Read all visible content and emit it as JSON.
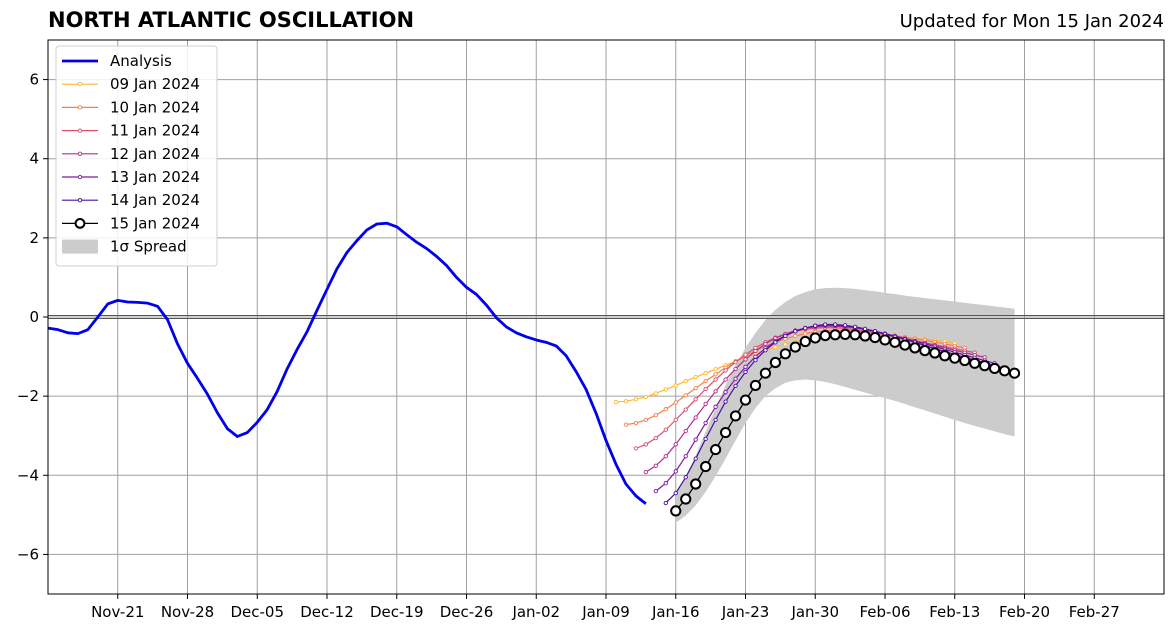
{
  "title": "NORTH ATLANTIC OSCILLATION",
  "updated": "Updated for Mon 15 Jan 2024",
  "chart_data": {
    "type": "line",
    "title": "NORTH ATLANTIC OSCILLATION",
    "x_start_date": "2023-11-14",
    "xlim": [
      "2023-11-14",
      "2024-03-05"
    ],
    "ylim": [
      -7,
      7
    ],
    "yticks": [
      -6,
      -4,
      -2,
      0,
      2,
      4,
      6
    ],
    "ytick_labels": [
      "−6",
      "−4",
      "−2",
      "0",
      "2",
      "4",
      "6"
    ],
    "xticks": [
      "2023-11-21",
      "2023-11-28",
      "2023-12-05",
      "2023-12-12",
      "2023-12-19",
      "2023-12-26",
      "2024-01-02",
      "2024-01-09",
      "2024-01-16",
      "2024-01-23",
      "2024-01-30",
      "2024-02-06",
      "2024-02-13",
      "2024-02-20",
      "2024-02-27"
    ],
    "xtick_labels": [
      "Nov-21",
      "Nov-28",
      "Dec-05",
      "Dec-12",
      "Dec-19",
      "Dec-26",
      "Jan-02",
      "Jan-09",
      "Jan-16",
      "Jan-23",
      "Jan-30",
      "Feb-06",
      "Feb-13",
      "Feb-20",
      "Feb-27"
    ],
    "grid": true,
    "legend_position": "top-left",
    "analysis": {
      "name": "Analysis",
      "color": "#0000ee",
      "start": "2023-11-14",
      "values": [
        -0.28,
        -0.32,
        -0.4,
        -0.42,
        -0.32,
        0.0,
        0.33,
        0.42,
        0.38,
        0.37,
        0.35,
        0.27,
        -0.07,
        -0.68,
        -1.17,
        -1.55,
        -1.95,
        -2.42,
        -2.82,
        -3.02,
        -2.92,
        -2.66,
        -2.34,
        -1.88,
        -1.31,
        -0.82,
        -0.37,
        0.17,
        0.7,
        1.22,
        1.63,
        1.93,
        2.2,
        2.35,
        2.37,
        2.28,
        2.08,
        1.89,
        1.73,
        1.53,
        1.3,
        1.0,
        0.75,
        0.57,
        0.3,
        -0.02,
        -0.25,
        -0.4,
        -0.5,
        -0.58,
        -0.64,
        -0.73,
        -0.98,
        -1.38,
        -1.83,
        -2.43,
        -3.12,
        -3.72,
        -4.22,
        -4.52,
        -4.72
      ]
    },
    "forecasts": [
      {
        "name": "09 Jan 2024",
        "color": "#ffb630",
        "start": "2024-01-10",
        "values": [
          -2.15,
          -2.13,
          -2.08,
          -2.02,
          -1.93,
          -1.83,
          -1.73,
          -1.62,
          -1.52,
          -1.42,
          -1.32,
          -1.22,
          -1.12,
          -1.02,
          -0.93,
          -0.84,
          -0.76,
          -0.69,
          -0.63,
          -0.58,
          -0.54,
          -0.51,
          -0.49,
          -0.47,
          -0.46,
          -0.46,
          -0.47,
          -0.48,
          -0.5,
          -0.52,
          -0.54,
          -0.56,
          -0.59,
          -0.62,
          -0.66
        ]
      },
      {
        "name": "10 Jan 2024",
        "color": "#f5804a",
        "start": "2024-01-11",
        "values": [
          -2.72,
          -2.68,
          -2.6,
          -2.48,
          -2.33,
          -2.16,
          -1.98,
          -1.8,
          -1.62,
          -1.45,
          -1.28,
          -1.12,
          -0.98,
          -0.85,
          -0.74,
          -0.64,
          -0.55,
          -0.48,
          -0.42,
          -0.38,
          -0.35,
          -0.34,
          -0.34,
          -0.35,
          -0.37,
          -0.4,
          -0.43,
          -0.47,
          -0.51,
          -0.55,
          -0.59,
          -0.63,
          -0.68,
          -0.73,
          -0.78
        ]
      },
      {
        "name": "11 Jan 2024",
        "color": "#dd4f6c",
        "start": "2024-01-12",
        "values": [
          -3.32,
          -3.22,
          -3.06,
          -2.85,
          -2.6,
          -2.34,
          -2.08,
          -1.82,
          -1.58,
          -1.35,
          -1.14,
          -0.95,
          -0.78,
          -0.64,
          -0.52,
          -0.43,
          -0.36,
          -0.31,
          -0.28,
          -0.27,
          -0.27,
          -0.29,
          -0.32,
          -0.36,
          -0.4,
          -0.45,
          -0.5,
          -0.55,
          -0.6,
          -0.65,
          -0.7,
          -0.75,
          -0.8,
          -0.85,
          -0.9
        ]
      },
      {
        "name": "12 Jan 2024",
        "color": "#b42d8d",
        "start": "2024-01-13",
        "values": [
          -3.92,
          -3.76,
          -3.52,
          -3.22,
          -2.88,
          -2.54,
          -2.2,
          -1.88,
          -1.58,
          -1.31,
          -1.07,
          -0.86,
          -0.68,
          -0.54,
          -0.43,
          -0.34,
          -0.28,
          -0.25,
          -0.23,
          -0.23,
          -0.25,
          -0.28,
          -0.32,
          -0.37,
          -0.42,
          -0.48,
          -0.54,
          -0.6,
          -0.66,
          -0.72,
          -0.78,
          -0.84,
          -0.9,
          -0.96,
          -1.02
        ]
      },
      {
        "name": "13 Jan 2024",
        "color": "#8217a6",
        "start": "2024-01-14",
        "values": [
          -4.4,
          -4.2,
          -3.9,
          -3.52,
          -3.1,
          -2.68,
          -2.27,
          -1.9,
          -1.56,
          -1.26,
          -1.0,
          -0.79,
          -0.61,
          -0.47,
          -0.36,
          -0.28,
          -0.23,
          -0.21,
          -0.21,
          -0.23,
          -0.26,
          -0.31,
          -0.36,
          -0.42,
          -0.48,
          -0.55,
          -0.61,
          -0.68,
          -0.75,
          -0.82,
          -0.89,
          -0.96,
          -1.03,
          -1.1,
          -1.17
        ]
      },
      {
        "name": "14 Jan 2024",
        "color": "#4a0f9c",
        "start": "2024-01-15",
        "values": [
          -4.7,
          -4.45,
          -4.05,
          -3.58,
          -3.08,
          -2.6,
          -2.14,
          -1.74,
          -1.39,
          -1.09,
          -0.84,
          -0.64,
          -0.48,
          -0.36,
          -0.28,
          -0.22,
          -0.19,
          -0.19,
          -0.21,
          -0.25,
          -0.3,
          -0.36,
          -0.43,
          -0.5,
          -0.57,
          -0.64,
          -0.72,
          -0.8,
          -0.87,
          -0.95,
          -1.02,
          -1.09,
          -1.16,
          -1.23,
          -1.3
        ]
      },
      {
        "name": "15 Jan 2024",
        "color": "#000000",
        "start": "2024-01-16",
        "values": [
          -4.9,
          -4.6,
          -4.22,
          -3.78,
          -3.35,
          -2.92,
          -2.5,
          -2.1,
          -1.73,
          -1.42,
          -1.15,
          -0.93,
          -0.76,
          -0.62,
          -0.53,
          -0.47,
          -0.45,
          -0.44,
          -0.45,
          -0.48,
          -0.52,
          -0.58,
          -0.64,
          -0.71,
          -0.78,
          -0.85,
          -0.91,
          -0.98,
          -1.04,
          -1.1,
          -1.17,
          -1.23,
          -1.3,
          -1.36,
          -1.42
        ]
      }
    ],
    "spread": {
      "name": "1σ Spread",
      "color": "#cccccc",
      "start": "2024-01-16",
      "upper": [
        -4.45,
        -4.05,
        -3.5,
        -2.9,
        -2.3,
        -1.72,
        -1.22,
        -0.78,
        -0.4,
        -0.08,
        0.18,
        0.38,
        0.53,
        0.63,
        0.7,
        0.73,
        0.74,
        0.73,
        0.71,
        0.68,
        0.65,
        0.61,
        0.58,
        0.54,
        0.51,
        0.48,
        0.45,
        0.42,
        0.39,
        0.36,
        0.33,
        0.3,
        0.27,
        0.24,
        0.21
      ],
      "lower": [
        -5.2,
        -5.02,
        -4.76,
        -4.42,
        -4.02,
        -3.58,
        -3.12,
        -2.68,
        -2.3,
        -2.0,
        -1.8,
        -1.66,
        -1.6,
        -1.58,
        -1.6,
        -1.64,
        -1.7,
        -1.77,
        -1.84,
        -1.91,
        -1.98,
        -2.05,
        -2.12,
        -2.2,
        -2.28,
        -2.36,
        -2.44,
        -2.52,
        -2.6,
        -2.68,
        -2.75,
        -2.82,
        -2.89,
        -2.96,
        -3.02
      ]
    }
  }
}
